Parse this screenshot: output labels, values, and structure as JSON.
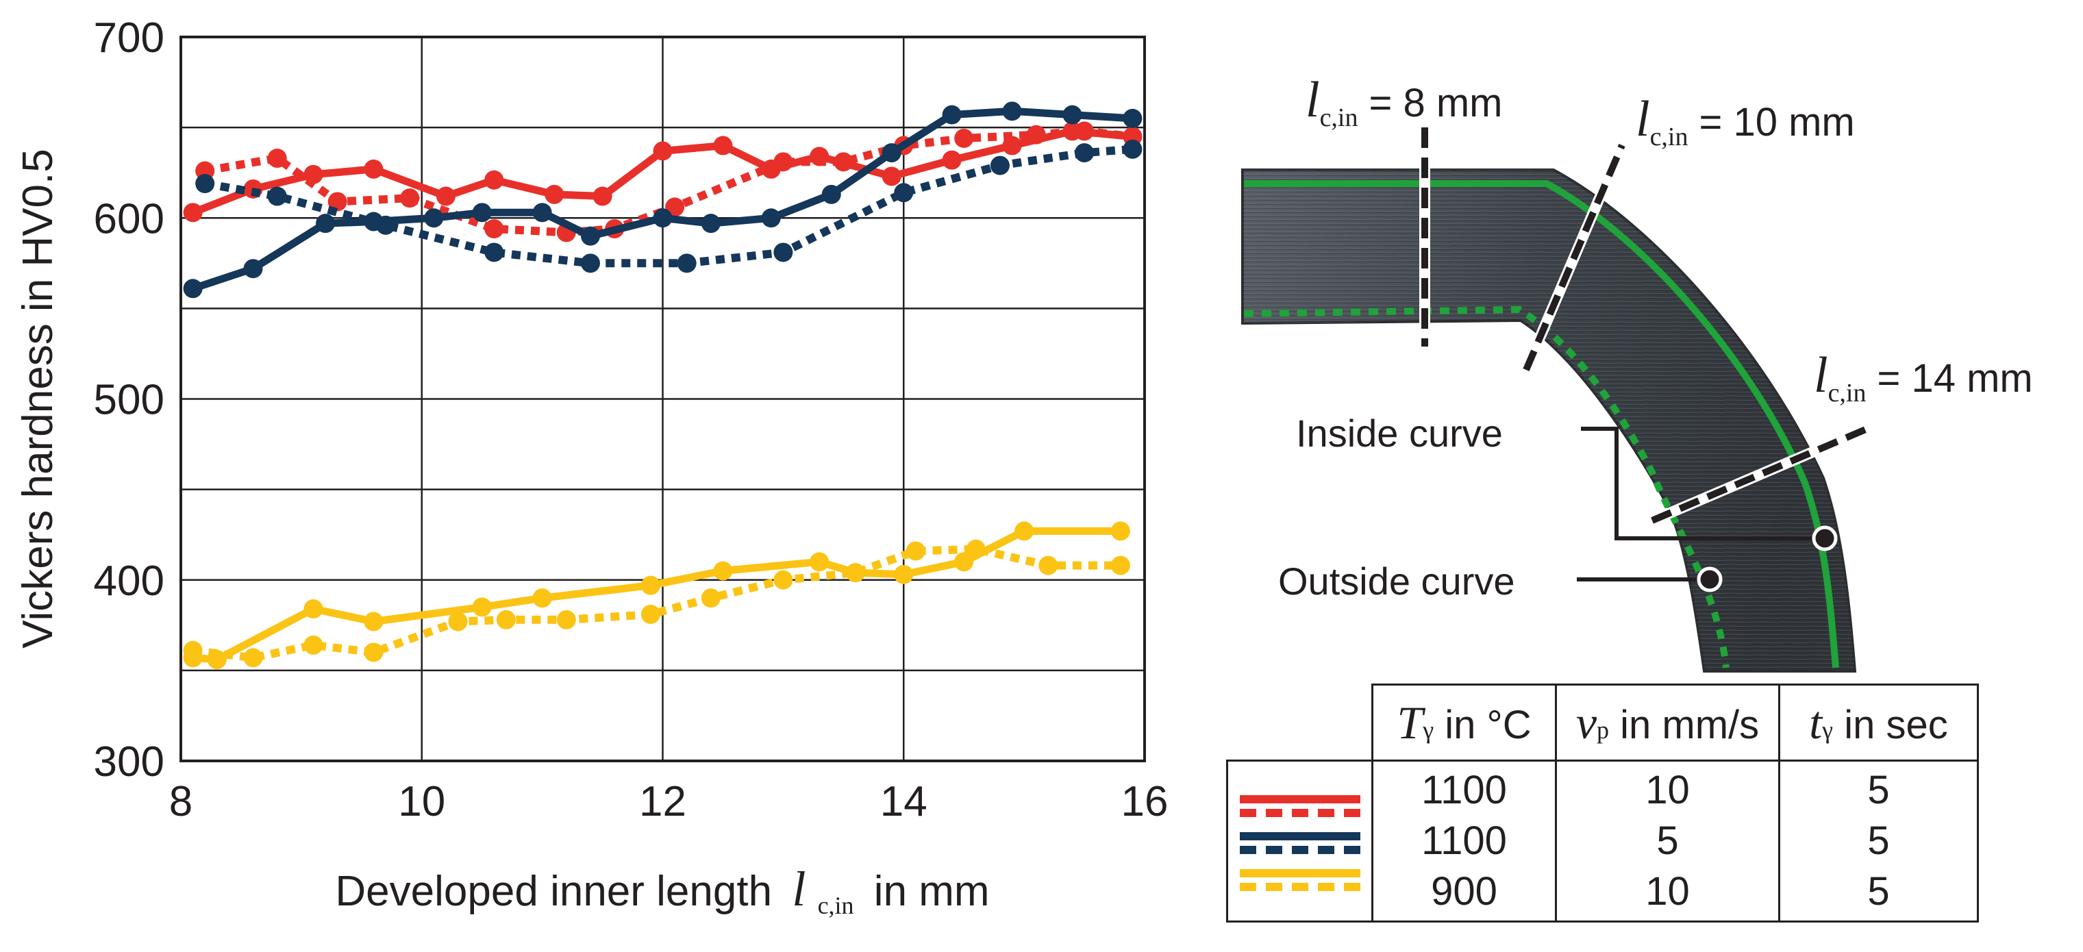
{
  "chart_data": {
    "type": "line",
    "xlabel": "Developed inner length",
    "xlabel_symbol": "l",
    "xlabel_subscript": "c,in",
    "xlabel_unit": "in mm",
    "ylabel": "Vickers hardness in HV0.5",
    "xlim": [
      8,
      16
    ],
    "ylim": [
      300,
      700
    ],
    "x_ticks": [
      "8",
      "10",
      "12",
      "14",
      "16"
    ],
    "y_ticks": [
      "300",
      "400",
      "500",
      "600",
      "700"
    ],
    "grid": true,
    "series": [
      {
        "name": "1100 °C, 10 mm/s, 5 s, inside",
        "color": "#e8302a",
        "dash": false,
        "points": [
          [
            8.1,
            603
          ],
          [
            8.6,
            616
          ],
          [
            9.1,
            624
          ],
          [
            9.6,
            627
          ],
          [
            10.2,
            612
          ],
          [
            10.6,
            621
          ],
          [
            11.1,
            613
          ],
          [
            11.5,
            612
          ],
          [
            12.0,
            637
          ],
          [
            12.5,
            640
          ],
          [
            12.9,
            627
          ],
          [
            13.3,
            634
          ],
          [
            13.9,
            623
          ],
          [
            14.4,
            632
          ],
          [
            14.9,
            640
          ],
          [
            15.4,
            648
          ],
          [
            15.9,
            645
          ]
        ]
      },
      {
        "name": "1100 °C, 10 mm/s, 5 s, outside",
        "color": "#e8302a",
        "dash": true,
        "points": [
          [
            8.2,
            626
          ],
          [
            8.8,
            633
          ],
          [
            9.3,
            609
          ],
          [
            9.9,
            611
          ],
          [
            10.6,
            594
          ],
          [
            11.2,
            592
          ],
          [
            11.6,
            594
          ],
          [
            12.1,
            606
          ],
          [
            13.0,
            631
          ],
          [
            13.5,
            631
          ],
          [
            14.0,
            640
          ],
          [
            14.5,
            644
          ],
          [
            15.1,
            646
          ],
          [
            15.5,
            648
          ],
          [
            15.9,
            645
          ]
        ]
      },
      {
        "name": "1100 °C, 5 mm/s, 5 s, inside",
        "color": "#14375a",
        "dash": false,
        "points": [
          [
            8.1,
            561
          ],
          [
            8.6,
            572
          ],
          [
            9.2,
            597
          ],
          [
            9.6,
            598
          ],
          [
            10.1,
            600
          ],
          [
            10.5,
            603
          ],
          [
            11.0,
            603
          ],
          [
            11.4,
            590
          ],
          [
            12.0,
            600
          ],
          [
            12.4,
            597
          ],
          [
            12.9,
            600
          ],
          [
            13.4,
            613
          ],
          [
            13.9,
            636
          ],
          [
            14.4,
            657
          ],
          [
            14.9,
            659
          ],
          [
            15.4,
            657
          ],
          [
            15.9,
            655
          ]
        ]
      },
      {
        "name": "1100 °C, 5 mm/s, 5 s, outside",
        "color": "#14375a",
        "dash": true,
        "points": [
          [
            8.2,
            619
          ],
          [
            8.8,
            612
          ],
          [
            9.7,
            596
          ],
          [
            10.6,
            581
          ],
          [
            11.4,
            575
          ],
          [
            12.2,
            575
          ],
          [
            13.0,
            581
          ],
          [
            14.0,
            614
          ],
          [
            14.8,
            629
          ],
          [
            15.5,
            636
          ],
          [
            15.9,
            638
          ]
        ]
      },
      {
        "name": "900 °C, 10 mm/s, 5 s, inside",
        "color": "#fbc314",
        "dash": false,
        "points": [
          [
            8.1,
            357
          ],
          [
            8.3,
            356
          ],
          [
            9.1,
            384
          ],
          [
            9.6,
            377
          ],
          [
            10.5,
            385
          ],
          [
            11.0,
            390
          ],
          [
            11.9,
            397
          ],
          [
            12.5,
            405
          ],
          [
            13.3,
            410
          ],
          [
            13.6,
            404
          ],
          [
            14.0,
            403
          ],
          [
            14.5,
            410
          ],
          [
            15.0,
            427
          ],
          [
            15.8,
            427
          ]
        ]
      },
      {
        "name": "900 °C, 10 mm/s, 5 s, outside",
        "color": "#fbc314",
        "dash": true,
        "points": [
          [
            8.1,
            361
          ],
          [
            8.6,
            357
          ],
          [
            9.1,
            364
          ],
          [
            9.6,
            360
          ],
          [
            10.3,
            377
          ],
          [
            10.7,
            378
          ],
          [
            11.2,
            378
          ],
          [
            11.9,
            381
          ],
          [
            12.4,
            390
          ],
          [
            13.0,
            400
          ],
          [
            13.6,
            404
          ],
          [
            14.1,
            416
          ],
          [
            14.6,
            417
          ],
          [
            15.2,
            408
          ],
          [
            15.8,
            408
          ]
        ]
      }
    ]
  },
  "section": {
    "label_8": {
      "symbol": "l",
      "sub": "c,in",
      "text": "= 8 mm"
    },
    "label_10": {
      "symbol": "l",
      "sub": "c,in",
      "text": "= 10 mm"
    },
    "label_14": {
      "symbol": "l",
      "sub": "c,in",
      "text": "= 14 mm"
    },
    "inside_label": "Inside curve",
    "outside_label": "Outside curve"
  },
  "legend_table": {
    "headers": [
      {
        "symbol": "T",
        "sub": "γ",
        "text": "in °C"
      },
      {
        "symbol": "v",
        "sub": "p",
        "text": "in mm/s"
      },
      {
        "symbol": "t",
        "sub": "γ",
        "text": "in sec"
      }
    ],
    "rows": [
      {
        "color": "#e8302a",
        "temp": "1100",
        "speed": "10",
        "time": "5"
      },
      {
        "color": "#14375a",
        "temp": "1100",
        "speed": "5",
        "time": "5"
      },
      {
        "color": "#fbc314",
        "temp": "900",
        "speed": "10",
        "time": "5"
      }
    ]
  }
}
